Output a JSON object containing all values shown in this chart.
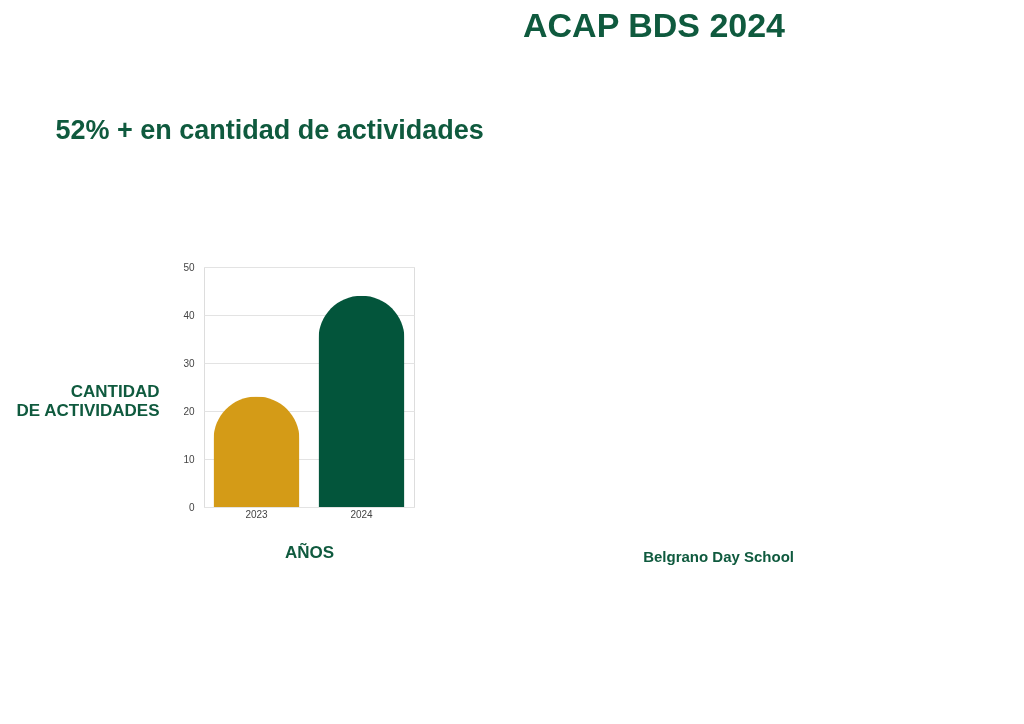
{
  "chart_data": {
    "type": "bar",
    "title": "52% + en cantidad de actividades",
    "categories": [
      "2023",
      "2024"
    ],
    "colors": [
      "#d49b17",
      "#03553b"
    ],
    "values": [
      23,
      44
    ],
    "xlabel": "AÑOS",
    "ylabel": "CANTIDAD\nDE ACTIVIDADES",
    "ylim": [
      0,
      50
    ],
    "yticks": [
      0,
      10,
      20,
      30,
      40,
      50
    ],
    "grid": "y",
    "annotations": [
      "ACAP BDS 2024",
      "Belgrano Day School"
    ]
  }
}
